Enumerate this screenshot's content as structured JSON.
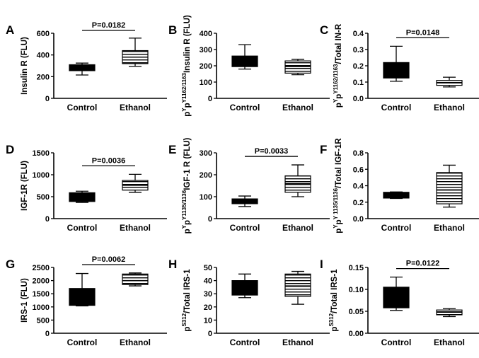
{
  "chart_data": [
    {
      "panel": "A",
      "type": "box",
      "ylabel": "Insulin R (FLU)",
      "ylim": [
        0,
        600
      ],
      "yticks": [
        "0",
        "200",
        "400",
        "600"
      ],
      "categories": [
        "Control",
        "Ethanol"
      ],
      "boxes": [
        {
          "min": 215,
          "q1": 255,
          "median": 280,
          "q3": 310,
          "max": 325,
          "pattern": "solid"
        },
        {
          "min": 295,
          "q1": 320,
          "median": 380,
          "q3": 440,
          "max": 555,
          "pattern": "stripes"
        }
      ],
      "pvalue": "P=0.0182"
    },
    {
      "panel": "B",
      "type": "box",
      "ylabel": "Insulin R (FLU)",
      "ylabel_prefix": "p",
      "ylabel_sup": "Y",
      "ylabel_mid": "p",
      "ylabel_sup2": "Y1162/1163",
      "ylim": [
        0,
        400
      ],
      "yticks": [
        "0",
        "100",
        "200",
        "300",
        "400"
      ],
      "categories": [
        "Control",
        "Ethanol"
      ],
      "boxes": [
        {
          "min": 180,
          "q1": 195,
          "median": 225,
          "q3": 260,
          "max": 330,
          "pattern": "solid"
        },
        {
          "min": 145,
          "q1": 155,
          "median": 195,
          "q3": 230,
          "max": 240,
          "pattern": "stripes"
        }
      ],
      "pvalue": ""
    },
    {
      "panel": "C",
      "type": "box",
      "ylabel": "/Total IN-R",
      "ylabel_prefix": "p",
      "ylabel_sup": "Y",
      "ylabel_mid": "p",
      "ylabel_sup2": "Y1162/1163",
      "ylim": [
        0,
        0.4
      ],
      "yticks": [
        "0.0",
        "0.1",
        "0.2",
        "0.3",
        "0.4"
      ],
      "categories": [
        "Control",
        "Ethanol"
      ],
      "boxes": [
        {
          "min": 0.105,
          "q1": 0.125,
          "median": 0.16,
          "q3": 0.22,
          "max": 0.32,
          "pattern": "solid"
        },
        {
          "min": 0.07,
          "q1": 0.08,
          "median": 0.095,
          "q3": 0.11,
          "max": 0.13,
          "pattern": "stripes"
        }
      ],
      "pvalue": "P=0.0148"
    },
    {
      "panel": "D",
      "type": "box",
      "ylabel": "IGF-1R (FLU)",
      "ylim": [
        0,
        1500
      ],
      "yticks": [
        "0",
        "500",
        "1000",
        "1500"
      ],
      "categories": [
        "Control",
        "Ethanol"
      ],
      "boxes": [
        {
          "min": 370,
          "q1": 390,
          "median": 470,
          "q3": 590,
          "max": 625,
          "pattern": "solid"
        },
        {
          "min": 600,
          "q1": 650,
          "median": 760,
          "q3": 870,
          "max": 1010,
          "pattern": "stripes"
        }
      ],
      "pvalue": "P=0.0036"
    },
    {
      "panel": "E",
      "type": "box",
      "ylabel": "IGF-1 R (FLU)",
      "ylabel_prefix": "p",
      "ylabel_sup": "Y",
      "ylabel_mid": "p",
      "ylabel_sup2": "Y1135/1136",
      "ylim": [
        0,
        300
      ],
      "yticks": [
        "0",
        "100",
        "200",
        "300"
      ],
      "categories": [
        "Control",
        "Ethanol"
      ],
      "boxes": [
        {
          "min": 55,
          "q1": 68,
          "median": 75,
          "q3": 90,
          "max": 103,
          "pattern": "solid"
        },
        {
          "min": 100,
          "q1": 120,
          "median": 160,
          "q3": 195,
          "max": 245,
          "pattern": "stripes"
        }
      ],
      "pvalue": "P=0.0033"
    },
    {
      "panel": "F",
      "type": "box",
      "ylabel": "/Total IGF-1R",
      "ylabel_prefix": "p",
      "ylabel_sup": "Y",
      "ylabel_mid": "p",
      "ylabel_sup2": "Y 1135/1136",
      "ylim": [
        0,
        0.8
      ],
      "yticks": [
        "0.0",
        "0.2",
        "0.4",
        "0.6",
        "0.8"
      ],
      "categories": [
        "Control",
        "Ethanol"
      ],
      "boxes": [
        {
          "min": 0.245,
          "q1": 0.25,
          "median": 0.29,
          "q3": 0.32,
          "max": 0.325,
          "pattern": "solid"
        },
        {
          "min": 0.14,
          "q1": 0.18,
          "median": 0.35,
          "q3": 0.56,
          "max": 0.65,
          "pattern": "stripes"
        }
      ],
      "pvalue": ""
    },
    {
      "panel": "G",
      "type": "box",
      "ylabel": "IRS-1 (FLU)",
      "ylim": [
        0,
        2500
      ],
      "yticks": [
        "0",
        "500",
        "1000",
        "1500",
        "2000",
        "2500"
      ],
      "categories": [
        "Control",
        "Ethanol"
      ],
      "boxes": [
        {
          "min": 1040,
          "q1": 1060,
          "median": 1300,
          "q3": 1700,
          "max": 2270,
          "pattern": "solid"
        },
        {
          "min": 1800,
          "q1": 1850,
          "median": 2000,
          "q3": 2250,
          "max": 2290,
          "pattern": "stripes"
        }
      ],
      "pvalue": "P=0.0062"
    },
    {
      "panel": "H",
      "type": "box",
      "ylabel": "/Total IRS-1",
      "ylabel_prefix": "p",
      "ylabel_sup": "S312",
      "ylim": [
        0,
        50
      ],
      "yticks": [
        "0",
        "10",
        "20",
        "30",
        "40",
        "50"
      ],
      "categories": [
        "Control",
        "Ethanol"
      ],
      "boxes": [
        {
          "min": 27,
          "q1": 29,
          "median": 34,
          "q3": 40,
          "max": 45,
          "pattern": "solid"
        },
        {
          "min": 22,
          "q1": 28,
          "median": 36,
          "q3": 45,
          "max": 47,
          "pattern": "stripes"
        }
      ],
      "pvalue": ""
    },
    {
      "panel": "I",
      "type": "box",
      "ylabel": "/Total IRS-1",
      "ylabel_prefix": "p",
      "ylabel_sup": "S312",
      "ylim": [
        0,
        0.15
      ],
      "yticks": [
        "0.00",
        "0.05",
        "0.10",
        "0.15"
      ],
      "categories": [
        "Control",
        "Ethanol"
      ],
      "boxes": [
        {
          "min": 0.052,
          "q1": 0.058,
          "median": 0.075,
          "q3": 0.105,
          "max": 0.128,
          "pattern": "solid"
        },
        {
          "min": 0.038,
          "q1": 0.042,
          "median": 0.048,
          "q3": 0.053,
          "max": 0.056,
          "pattern": "stripes"
        }
      ],
      "pvalue": "P=0.0122"
    }
  ]
}
